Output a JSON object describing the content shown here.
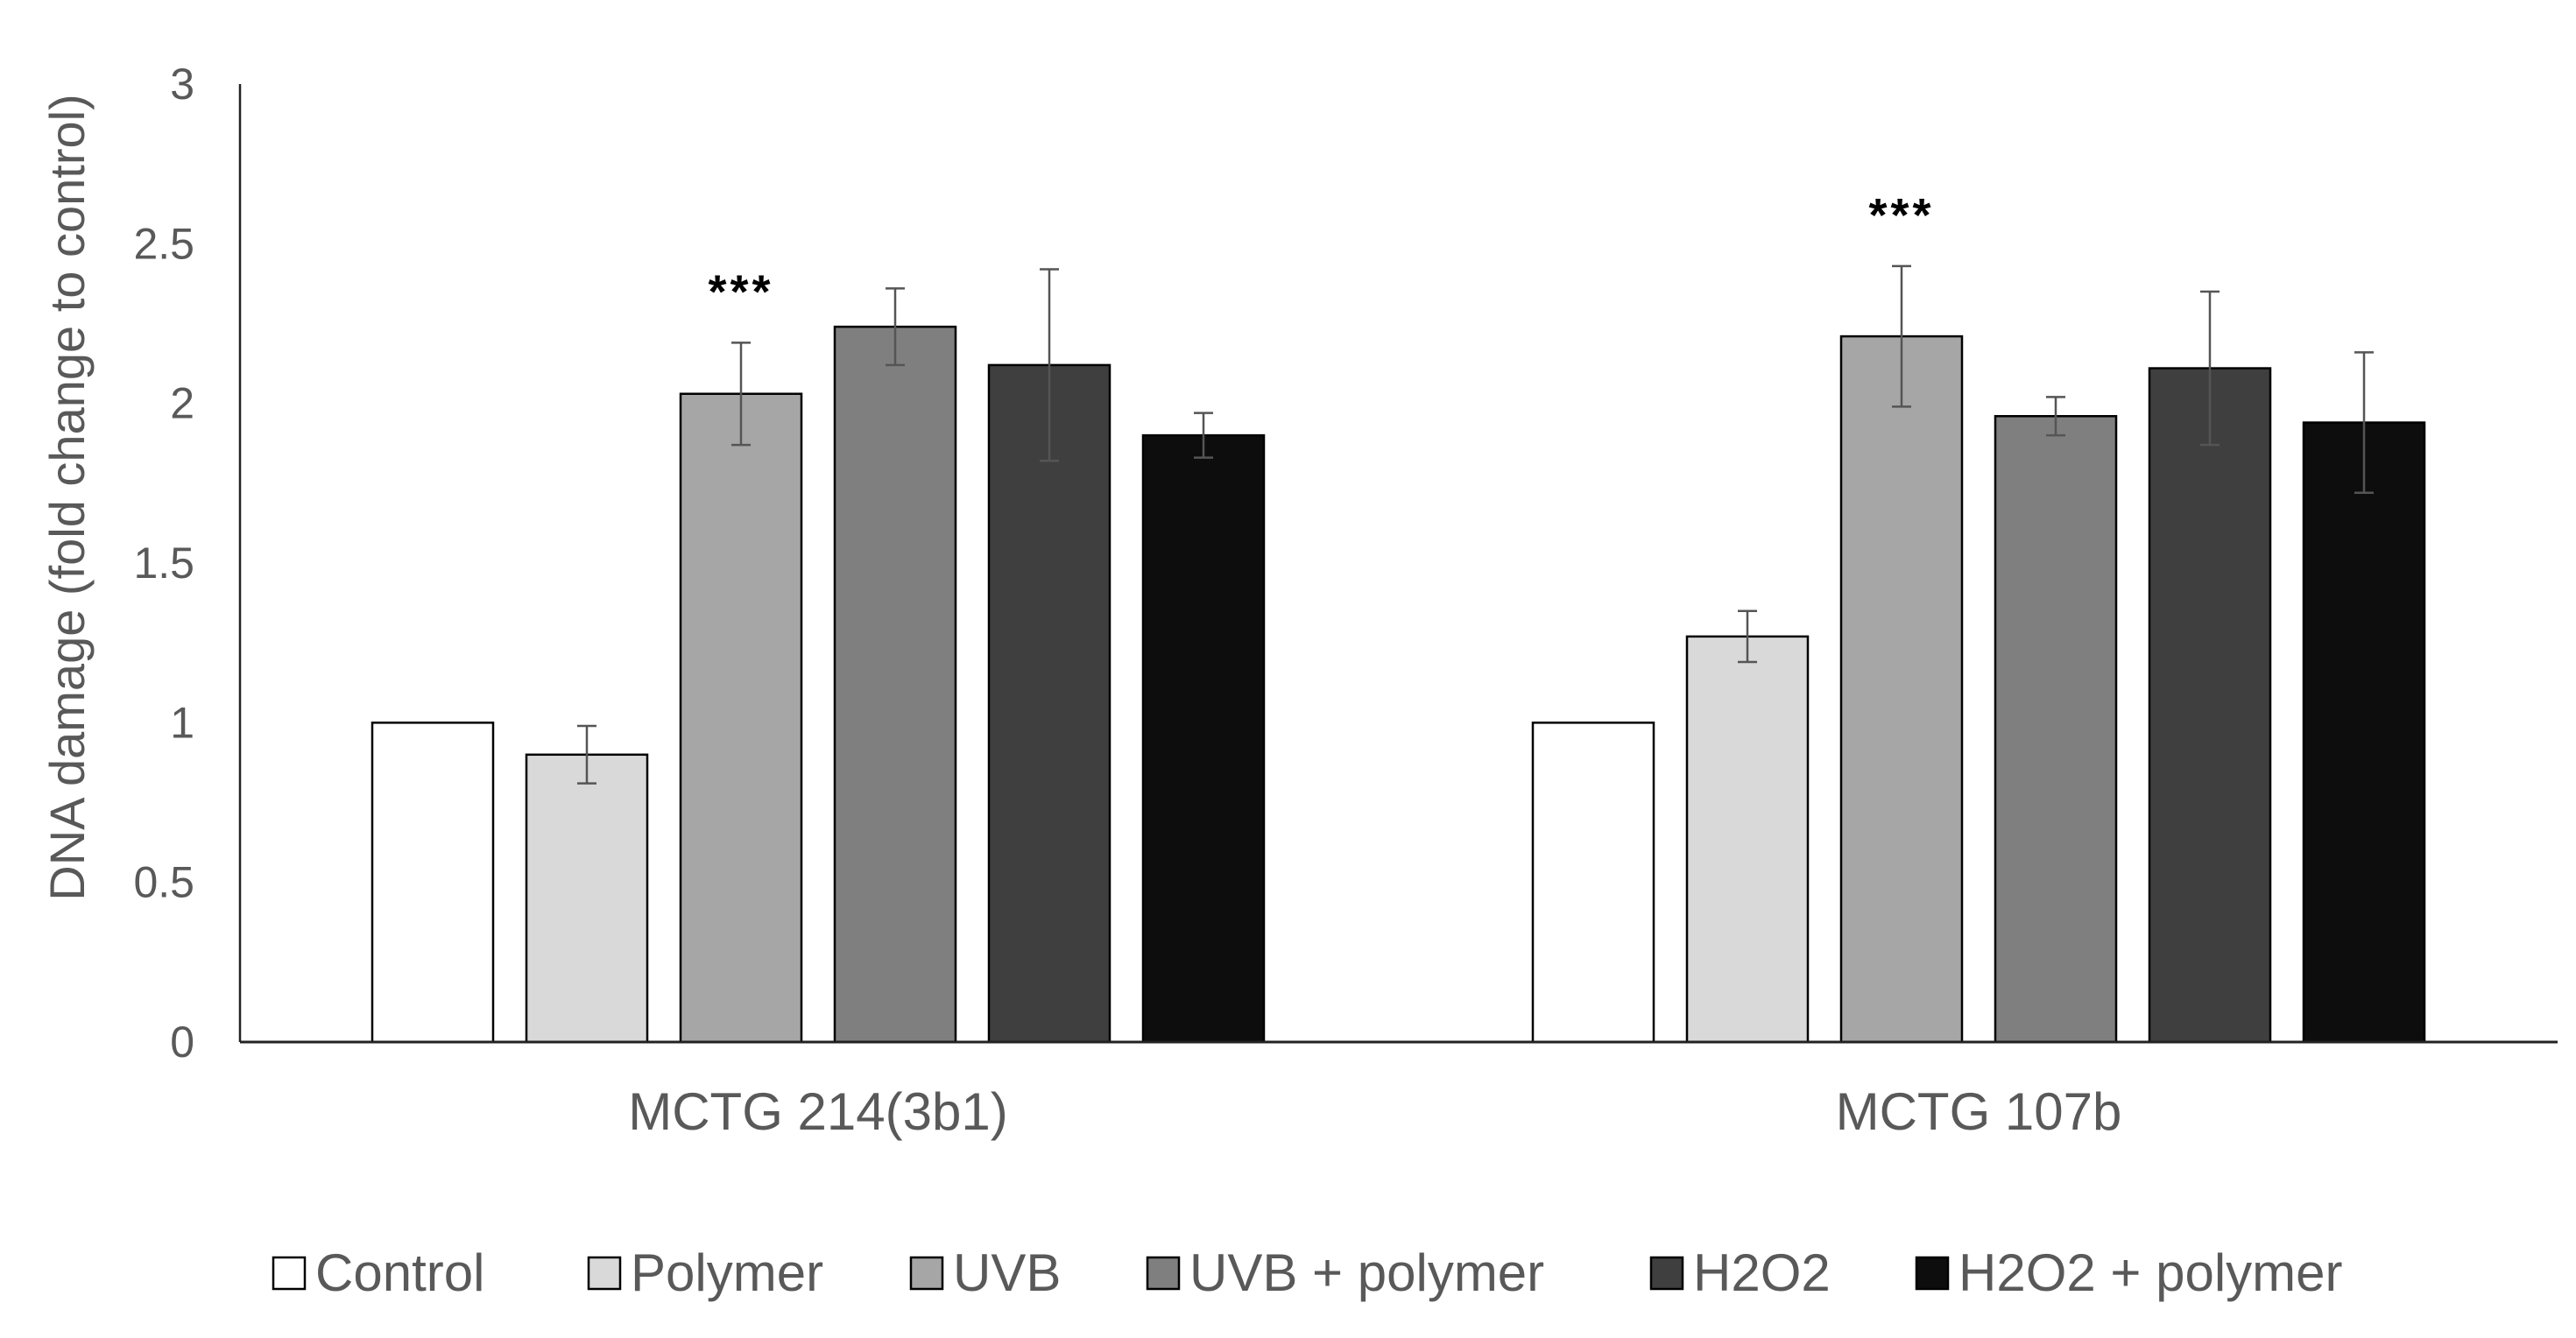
{
  "chart_data": {
    "type": "bar",
    "title": "",
    "xlabel": "",
    "ylabel": "DNA damage (fold change to control)",
    "ylim": [
      0,
      3
    ],
    "yticks": [
      "0",
      "0.5",
      "1",
      "1.5",
      "2",
      "2.5",
      "3"
    ],
    "grid": false,
    "legend_position": "bottom",
    "categories": [
      "MCTG 214(3b1)",
      "MCTG 107b"
    ],
    "series": [
      {
        "name": "Control",
        "color": "#ffffff",
        "values": [
          1.0,
          1.0
        ],
        "errors": [
          0,
          0
        ]
      },
      {
        "name": "Polymer",
        "color": "#d9d9d9",
        "values": [
          0.9,
          1.27
        ],
        "errors": [
          0.09,
          0.08
        ]
      },
      {
        "name": "UVB",
        "color": "#a6a6a6",
        "values": [
          2.03,
          2.21
        ],
        "errors": [
          0.16,
          0.22
        ]
      },
      {
        "name": "UVB + polymer",
        "color": "#7f7f7f",
        "values": [
          2.24,
          1.96
        ],
        "errors": [
          0.12,
          0.06
        ]
      },
      {
        "name": "H2O2",
        "color": "#3f3f3f",
        "values": [
          2.12,
          2.11
        ],
        "errors": [
          0.3,
          0.24
        ]
      },
      {
        "name": "H2O2 + polymer",
        "color": "#0d0d0d",
        "values": [
          1.9,
          1.94
        ],
        "errors": [
          0.07,
          0.22
        ]
      }
    ],
    "annotations": [
      {
        "text": "***",
        "category": "MCTG 214(3b1)",
        "series": "UVB"
      },
      {
        "text": "***",
        "category": "MCTG 107b",
        "series": "UVB"
      }
    ]
  }
}
